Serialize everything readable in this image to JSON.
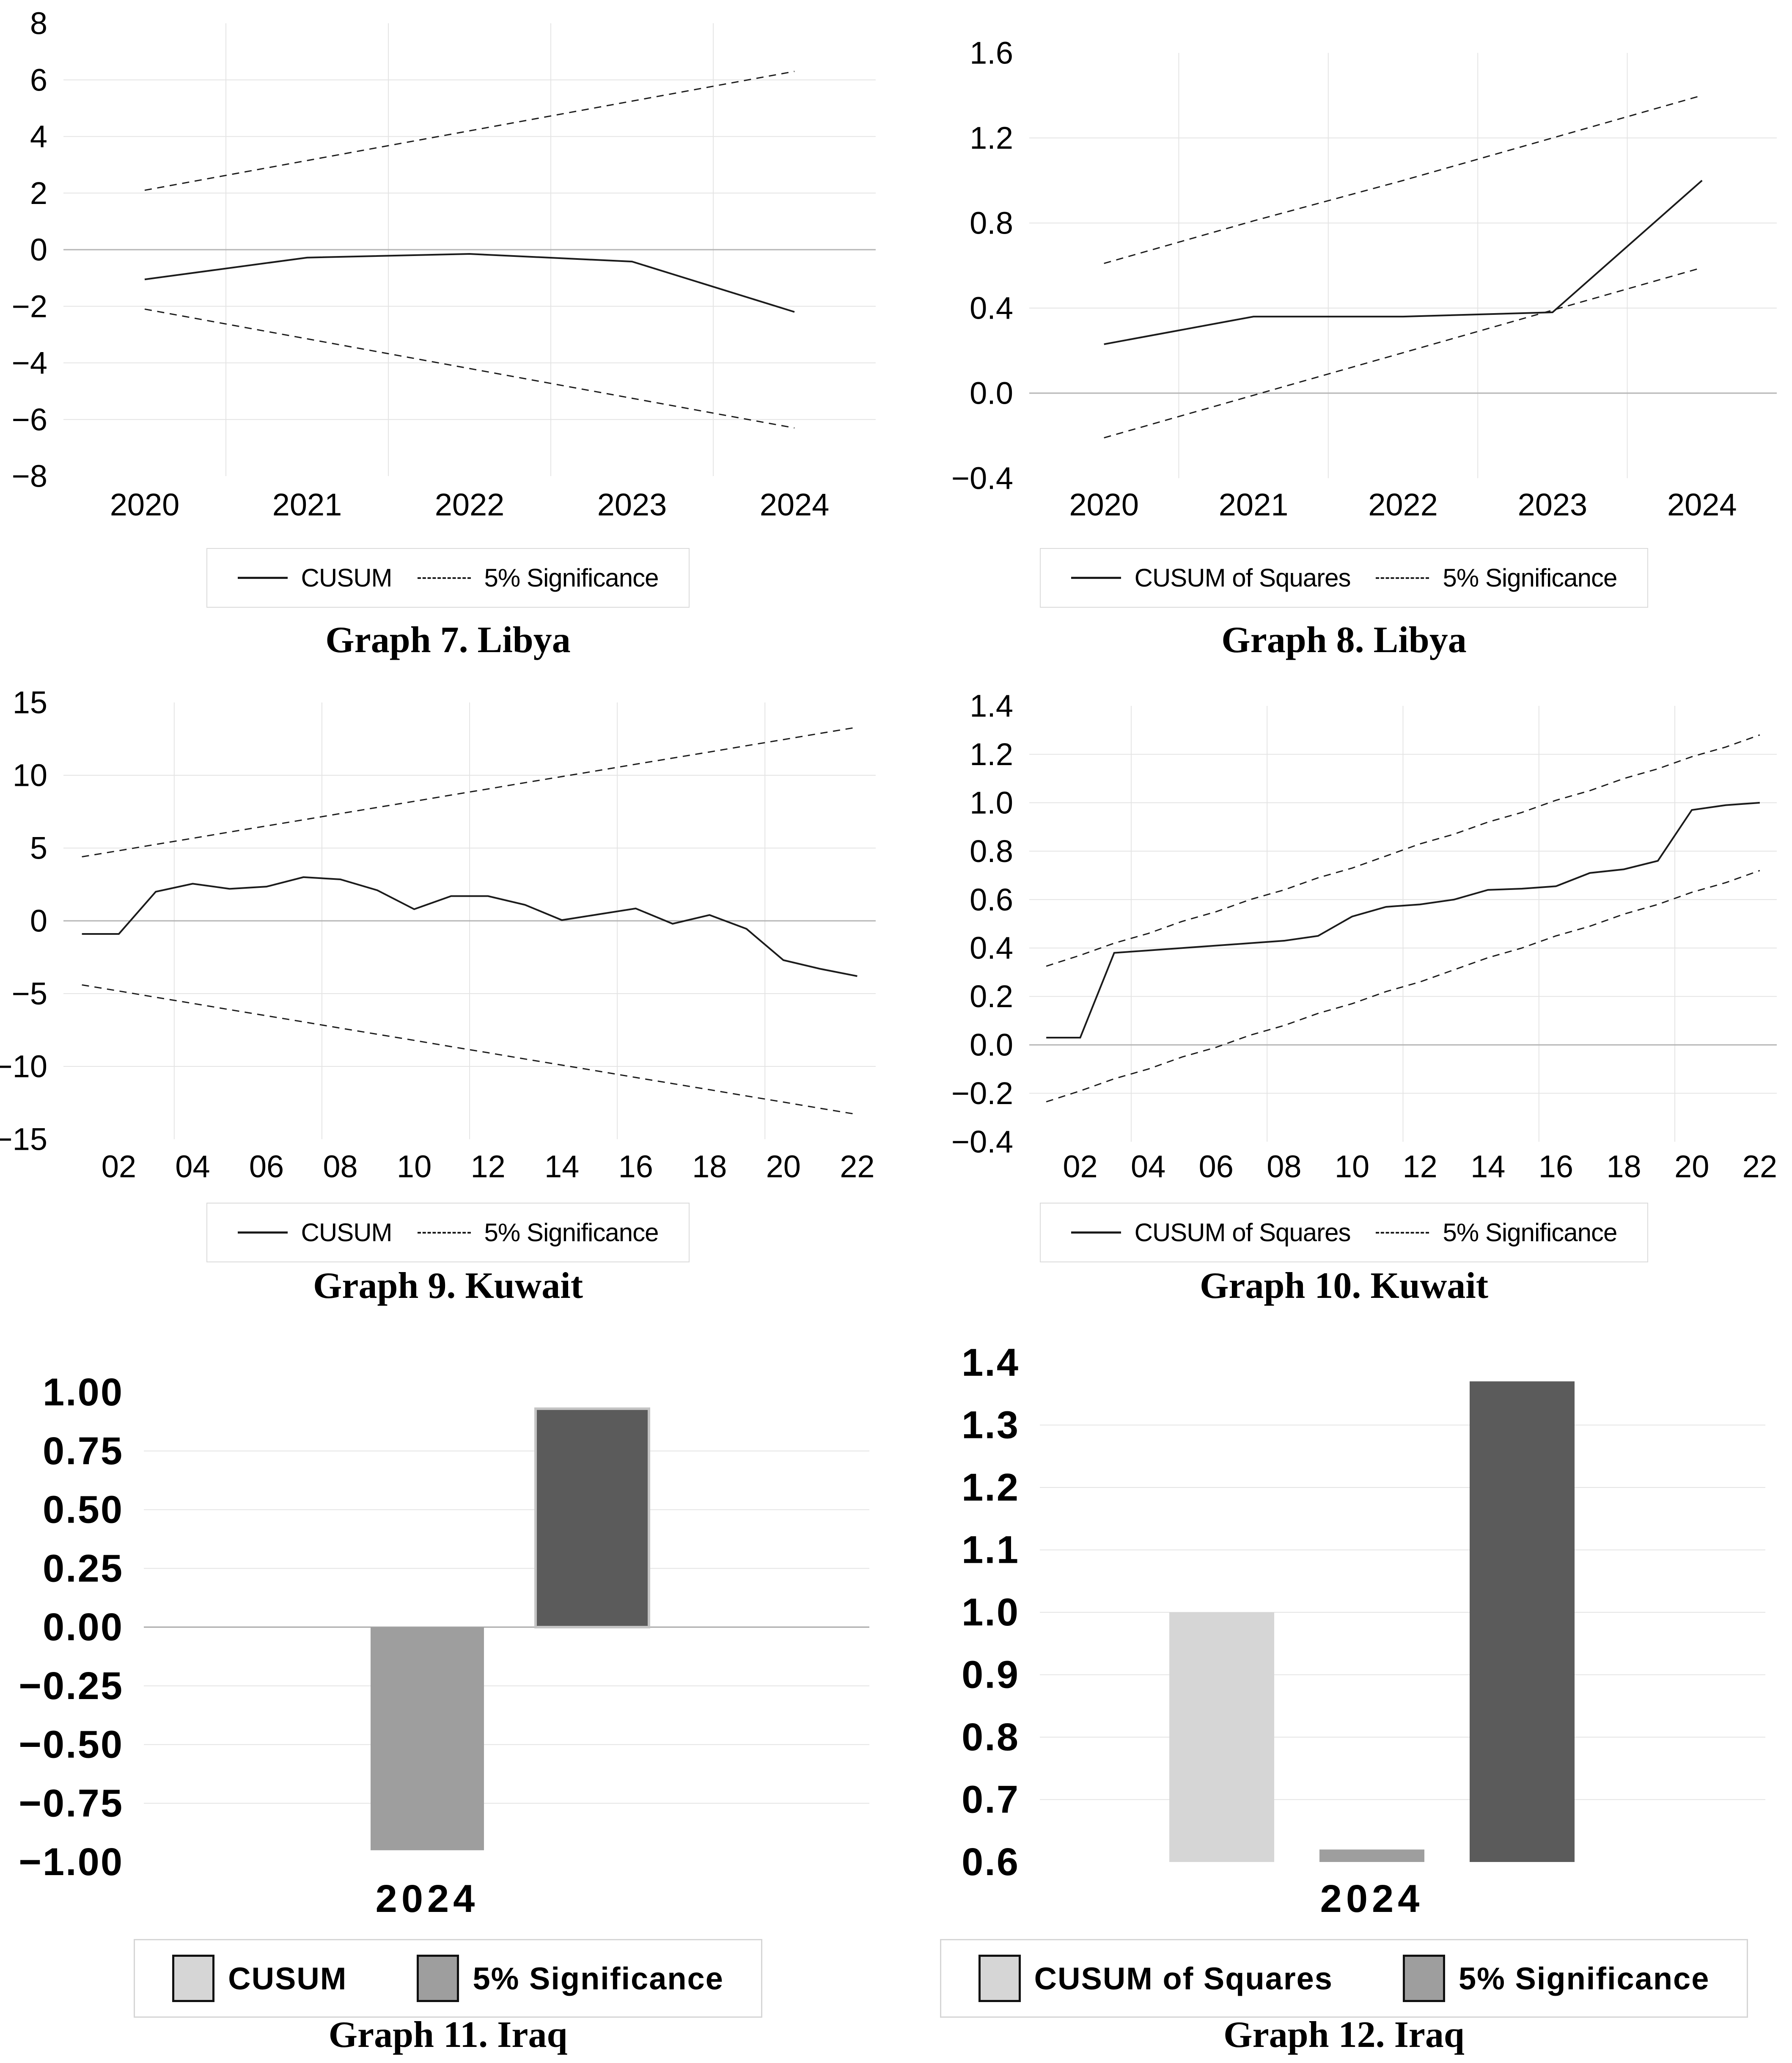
{
  "page": {
    "background": "#ffffff"
  },
  "colors": {
    "line": "#1b1b1b",
    "grid": "#e4e4e4",
    "zero_line": "#b4b4b4",
    "legend_border": "#dadada",
    "bar_light": "#d6d6d6",
    "bar_medium": "#9e9e9e",
    "bar_dark": "#5b5b5b"
  },
  "chart_data": [
    {
      "id": "graph7",
      "type": "line",
      "title": "Graph 7. Libya",
      "x": [
        2020,
        2021,
        2022,
        2023,
        2024
      ],
      "xlim": [
        2019.5,
        2024.5
      ],
      "xticks": [
        2020,
        2021,
        2022,
        2023,
        2024
      ],
      "xtick_labels": [
        "2020",
        "2021",
        "2022",
        "2023",
        "2024"
      ],
      "grid_x": [
        2020.5,
        2021.5,
        2022.5,
        2023.5
      ],
      "ylim": [
        -8,
        8
      ],
      "yticks": [
        8,
        6,
        4,
        2,
        0,
        -2,
        -4,
        -6,
        -8
      ],
      "ytick_labels": [
        "8",
        "6",
        "4",
        "2",
        "0",
        "−2",
        "−4",
        "−6",
        "−8"
      ],
      "zero_line": true,
      "series": [
        {
          "name": "CUSUM",
          "style": "solid",
          "values": [
            -1.05,
            -0.28,
            -0.15,
            -0.42,
            -2.2
          ]
        },
        {
          "name": "5% Significance upper",
          "style": "dashed",
          "values": [
            2.1,
            3.15,
            4.2,
            5.25,
            6.3
          ]
        },
        {
          "name": "5% Significance lower",
          "style": "dashed",
          "values": [
            -2.1,
            -3.15,
            -4.2,
            -5.25,
            -6.3
          ]
        }
      ],
      "legend": [
        {
          "label": "CUSUM",
          "style": "solid"
        },
        {
          "label": "5% Significance",
          "style": "dashed"
        }
      ]
    },
    {
      "id": "graph8",
      "type": "line",
      "title": "Graph 8. Libya",
      "x": [
        2020,
        2021,
        2022,
        2023,
        2024
      ],
      "xlim": [
        2019.5,
        2024.5
      ],
      "xticks": [
        2020,
        2021,
        2022,
        2023,
        2024
      ],
      "xtick_labels": [
        "2020",
        "2021",
        "2022",
        "2023",
        "2024"
      ],
      "grid_x": [
        2020.5,
        2021.5,
        2022.5,
        2023.5
      ],
      "ylim": [
        -0.4,
        1.6
      ],
      "yticks": [
        1.6,
        1.2,
        0.8,
        0.4,
        0.0,
        -0.4
      ],
      "ytick_labels": [
        "1.6",
        "1.2",
        "0.8",
        "0.4",
        "0.0",
        "−0.4"
      ],
      "zero_line": true,
      "series": [
        {
          "name": "CUSUM of Squares",
          "style": "solid",
          "values": [
            0.23,
            0.36,
            0.36,
            0.38,
            1.0
          ]
        },
        {
          "name": "5% Significance upper",
          "style": "dashed",
          "values": [
            0.61,
            0.81,
            1.0,
            1.2,
            1.4
          ]
        },
        {
          "name": "5% Significance lower",
          "style": "dashed",
          "values": [
            -0.21,
            -0.01,
            0.19,
            0.39,
            0.59
          ]
        }
      ],
      "legend": [
        {
          "label": "CUSUM of Squares",
          "style": "solid"
        },
        {
          "label": "5% Significance",
          "style": "dashed"
        }
      ]
    },
    {
      "id": "graph9",
      "type": "line",
      "title": "Graph 9. Kuwait",
      "x": [
        1,
        2,
        3,
        4,
        5,
        6,
        7,
        8,
        9,
        10,
        11,
        12,
        13,
        14,
        15,
        16,
        17,
        18,
        19,
        20,
        21,
        22
      ],
      "xlim": [
        0.5,
        22.5
      ],
      "xticks": [
        2,
        4,
        6,
        8,
        10,
        12,
        14,
        16,
        18,
        20,
        22
      ],
      "xtick_labels": [
        "02",
        "04",
        "06",
        "08",
        "10",
        "12",
        "14",
        "16",
        "18",
        "20",
        "22"
      ],
      "grid_x": [
        3.5,
        7.5,
        11.5,
        15.5,
        19.5
      ],
      "ylim": [
        -15,
        15
      ],
      "yticks": [
        15,
        10,
        5,
        0,
        -5,
        -10,
        -15
      ],
      "ytick_labels": [
        "15",
        "10",
        "5",
        "0",
        "−5",
        "−10",
        "−15"
      ],
      "zero_line": true,
      "series": [
        {
          "name": "CUSUM",
          "style": "solid",
          "values": [
            -0.9,
            -0.9,
            2.0,
            2.55,
            2.2,
            2.35,
            3.0,
            2.85,
            2.1,
            0.8,
            1.7,
            1.7,
            1.1,
            0.05,
            0.45,
            0.85,
            -0.2,
            0.4,
            -0.55,
            -2.7,
            -3.3,
            -3.8
          ]
        },
        {
          "name": "5% Significance upper",
          "style": "dashed",
          "values": [
            4.4,
            4.82,
            5.25,
            5.67,
            6.1,
            6.52,
            6.94,
            7.37,
            7.79,
            8.21,
            8.64,
            9.06,
            9.49,
            9.91,
            10.33,
            10.76,
            11.18,
            11.6,
            12.03,
            12.45,
            12.88,
            13.3
          ]
        },
        {
          "name": "5% Significance lower",
          "style": "dashed",
          "values": [
            -4.4,
            -4.82,
            -5.25,
            -5.67,
            -6.1,
            -6.52,
            -6.94,
            -7.37,
            -7.79,
            -8.21,
            -8.64,
            -9.06,
            -9.49,
            -9.91,
            -10.33,
            -10.76,
            -11.18,
            -11.6,
            -12.03,
            -12.45,
            -12.88,
            -13.3
          ]
        }
      ],
      "legend": [
        {
          "label": "CUSUM",
          "style": "solid"
        },
        {
          "label": "5% Significance",
          "style": "dashed"
        }
      ]
    },
    {
      "id": "graph10",
      "type": "line",
      "title": "Graph 10. Kuwait",
      "x": [
        1,
        2,
        3,
        4,
        5,
        6,
        7,
        8,
        9,
        10,
        11,
        12,
        13,
        14,
        15,
        16,
        17,
        18,
        19,
        20,
        21,
        22
      ],
      "xlim": [
        0.5,
        22.5
      ],
      "xticks": [
        2,
        4,
        6,
        8,
        10,
        12,
        14,
        16,
        18,
        20,
        22
      ],
      "xtick_labels": [
        "02",
        "04",
        "06",
        "08",
        "10",
        "12",
        "14",
        "16",
        "18",
        "20",
        "22"
      ],
      "grid_x": [
        3.5,
        7.5,
        11.5,
        15.5,
        19.5
      ],
      "ylim": [
        -0.4,
        1.4
      ],
      "yticks": [
        1.4,
        1.2,
        1.0,
        0.8,
        0.6,
        0.4,
        0.2,
        0.0,
        -0.2,
        -0.4
      ],
      "ytick_labels": [
        "1.4",
        "1.2",
        "1.0",
        "0.8",
        "0.6",
        "0.4",
        "0.2",
        "0.0",
        "−0.2",
        "−0.4"
      ],
      "zero_line": true,
      "series": [
        {
          "name": "CUSUM of Squares",
          "style": "solid",
          "values": [
            0.03,
            0.03,
            0.38,
            0.39,
            0.4,
            0.41,
            0.42,
            0.43,
            0.45,
            0.53,
            0.57,
            0.58,
            0.6,
            0.64,
            0.645,
            0.655,
            0.71,
            0.725,
            0.76,
            0.97,
            0.99,
            1.0
          ]
        },
        {
          "name": "5% Significance upper",
          "style": "dashed",
          "values": [
            0.325,
            0.37,
            0.42,
            0.46,
            0.51,
            0.55,
            0.6,
            0.64,
            0.69,
            0.73,
            0.78,
            0.83,
            0.87,
            0.92,
            0.96,
            1.01,
            1.05,
            1.1,
            1.14,
            1.19,
            1.23,
            1.28
          ]
        },
        {
          "name": "5% Significance lower",
          "style": "dashed",
          "values": [
            -0.235,
            -0.19,
            -0.14,
            -0.1,
            -0.05,
            -0.01,
            0.04,
            0.08,
            0.13,
            0.17,
            0.22,
            0.26,
            0.31,
            0.36,
            0.4,
            0.45,
            0.49,
            0.54,
            0.58,
            0.63,
            0.67,
            0.72
          ]
        }
      ],
      "legend": [
        {
          "label": "CUSUM of Squares",
          "style": "solid"
        },
        {
          "label": "5% Significance",
          "style": "dashed"
        }
      ]
    },
    {
      "id": "graph11",
      "type": "bar",
      "title": "Graph 11. Iraq",
      "categories": [
        "2024"
      ],
      "ylim": [
        -1.0,
        1.0
      ],
      "baseline": 0.0,
      "yticks": [
        1.0,
        0.75,
        0.5,
        0.25,
        0.0,
        -0.25,
        -0.5,
        -0.75,
        -1.0
      ],
      "ytick_labels": [
        "1.00",
        "0.75",
        "0.50",
        "0.25",
        "0.00",
        "−0.25",
        "−0.50",
        "−0.75",
        "−1.00"
      ],
      "zero_line": true,
      "bars": [
        {
          "name": "CUSUM",
          "value": 0.0,
          "color_key": "bar_light"
        },
        {
          "name": "5% Significance lower",
          "value": -0.95,
          "color_key": "bar_medium"
        },
        {
          "name": "5% Significance upper",
          "value": 0.93,
          "color_key": "bar_dark",
          "stroke": "#c4c4c4"
        }
      ],
      "legend": [
        {
          "label": "CUSUM",
          "color_key": "bar_light"
        },
        {
          "label": "5% Significance",
          "color_key": "bar_medium"
        }
      ]
    },
    {
      "id": "graph12",
      "type": "bar",
      "title": "Graph 12. Iraq",
      "categories": [
        "2024"
      ],
      "ylim": [
        0.6,
        1.4
      ],
      "baseline": 0.6,
      "yticks": [
        1.4,
        1.3,
        1.2,
        1.1,
        1.0,
        0.9,
        0.8,
        0.7,
        0.6
      ],
      "ytick_labels": [
        "1.4",
        "1.3",
        "1.2",
        "1.1",
        "1.0",
        "0.9",
        "0.8",
        "0.7",
        "0.6"
      ],
      "zero_line": false,
      "bars": [
        {
          "name": "CUSUM of Squares",
          "value": 1.0,
          "color_key": "bar_light"
        },
        {
          "name": "5% Significance lower",
          "value": 0.62,
          "color_key": "bar_medium"
        },
        {
          "name": "5% Significance upper",
          "value": 1.37,
          "color_key": "bar_dark"
        }
      ],
      "legend": [
        {
          "label": "CUSUM of Squares",
          "color_key": "bar_light"
        },
        {
          "label": "5% Significance",
          "color_key": "bar_medium"
        }
      ]
    }
  ]
}
